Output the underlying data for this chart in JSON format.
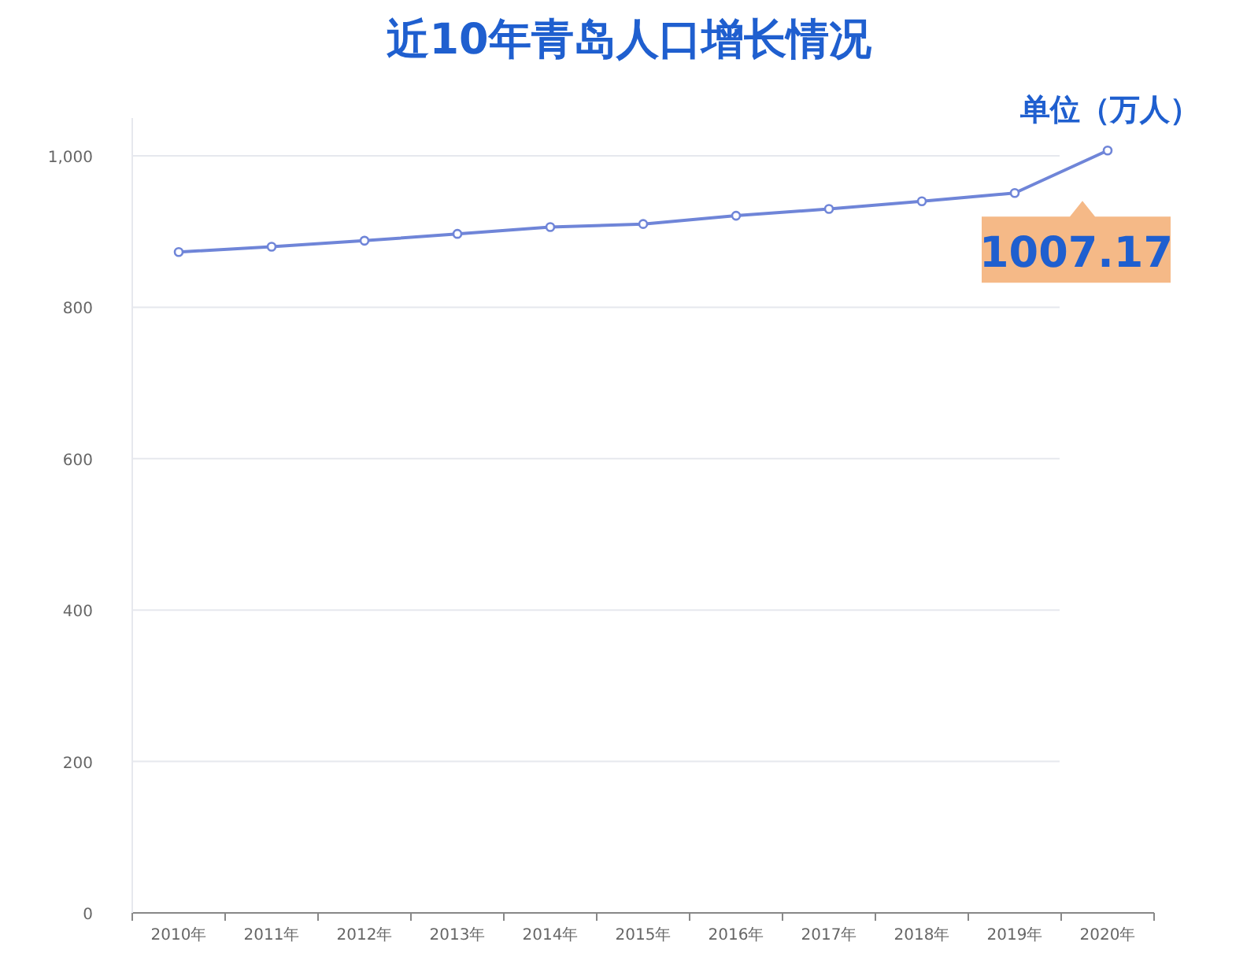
{
  "chart_data": {
    "type": "line",
    "title": "近10年青岛人口增长情况",
    "categories": [
      "2010年",
      "2011年",
      "2012年",
      "2013年",
      "2014年",
      "2015年",
      "2016年",
      "2017年",
      "2018年",
      "2019年",
      "2020年"
    ],
    "series": [
      {
        "color": "#6f85d8",
        "values": [
          873,
          880,
          888,
          897,
          906,
          910,
          921,
          930,
          940,
          951,
          1007.17
        ],
        "value_labels": [
          null,
          null,
          null,
          null,
          null,
          null,
          null,
          null,
          null,
          null,
          "1007.17"
        ]
      }
    ],
    "ylim": [
      0,
      1050
    ],
    "yticks": [
      0,
      200,
      400,
      600,
      800,
      {
        "value": 1000,
        "label": "1,000"
      }
    ],
    "grid": "y",
    "marker": "circle",
    "line_style": "solid",
    "annotations": [
      "单位（万人）"
    ]
  }
}
